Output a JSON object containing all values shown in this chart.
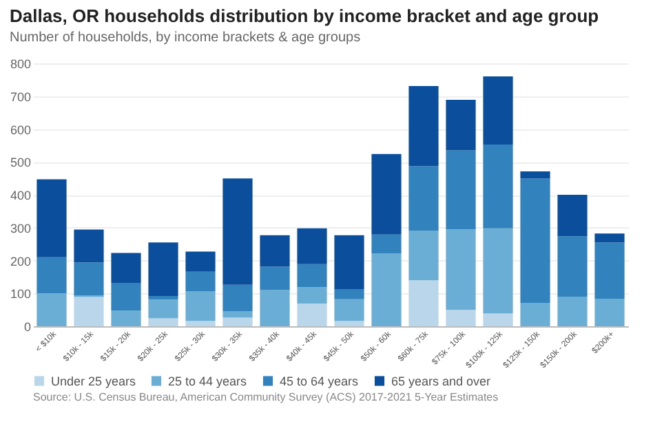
{
  "chart_data": {
    "type": "bar",
    "title": "Dallas, OR households distribution by income bracket and age group",
    "subtitle": "Number of households, by income brackets & age groups",
    "categories": [
      "< $10k",
      "$10k - 15k",
      "$15k - 20k",
      "$20k - 25k",
      "$25k - 30k",
      "$30k - 35k",
      "$35k - 40k",
      "$40k - 45k",
      "$45k - 50k",
      "$50k - 60k",
      "$60k - 75k",
      "$75k - 100k",
      "$100k - 125k",
      "$125k - 150k",
      "$150k - 200k",
      "$200k+"
    ],
    "stacked": true,
    "series": [
      {
        "name": "Under 25 years",
        "color": "#b9d6ea",
        "values": [
          0,
          89,
          0,
          24,
          16,
          26,
          0,
          69,
          16,
          0,
          140,
          50,
          39,
          0,
          0,
          0
        ]
      },
      {
        "name": "25 to 44 years",
        "color": "#6aaed6",
        "values": [
          100,
          4,
          48,
          57,
          90,
          19,
          111,
          50,
          66,
          221,
          150,
          245,
          259,
          71,
          90,
          84
        ]
      },
      {
        "name": "45 to 64 years",
        "color": "#3182bd",
        "values": [
          110,
          101,
          84,
          11,
          60,
          81,
          70,
          70,
          31,
          58,
          197,
          240,
          255,
          379,
          184,
          171
        ]
      },
      {
        "name": "65 years and over",
        "color": "#0b4f9c",
        "values": [
          237,
          100,
          91,
          163,
          61,
          324,
          96,
          109,
          164,
          245,
          244,
          154,
          207,
          21,
          126,
          27
        ]
      }
    ],
    "ylim": [
      0,
      800
    ],
    "yticks": [
      0,
      100,
      200,
      300,
      400,
      500,
      600,
      700,
      800
    ],
    "grid": "y",
    "legend": "bottom",
    "annotations": [
      "Source: U.S. Census Bureau, American Community Survey (ACS) 2017-2021 5-Year Estimates"
    ]
  }
}
